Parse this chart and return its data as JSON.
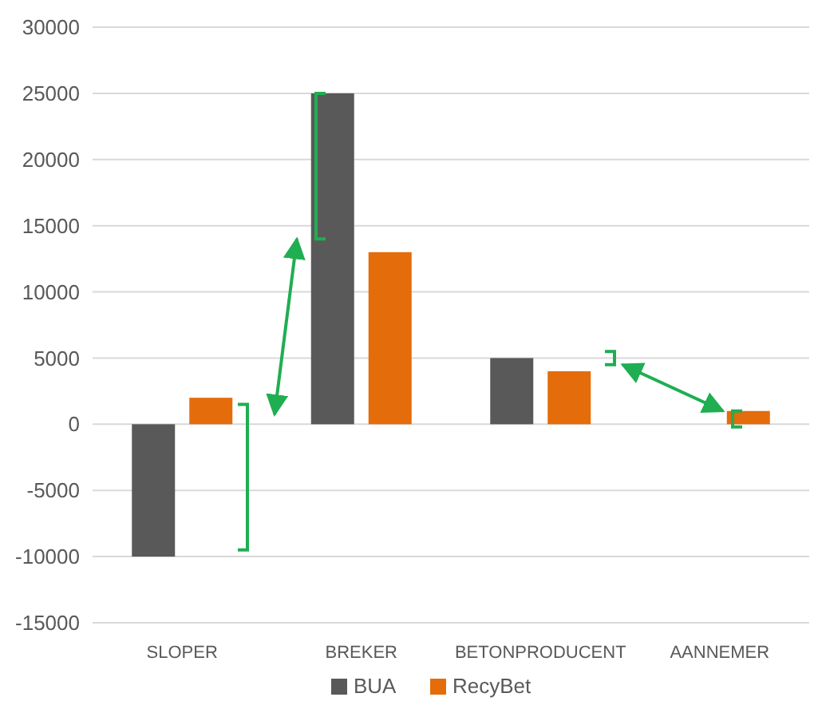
{
  "chart_data": {
    "type": "bar",
    "categories": [
      "SLOPER",
      "BREKER",
      "BETONPRODUCENT",
      "AANNEMER"
    ],
    "series": [
      {
        "name": "BUA",
        "color": "#595959",
        "values": [
          -10000,
          25000,
          5000,
          null
        ]
      },
      {
        "name": "RecyBet",
        "color": "#e46c0a",
        "values": [
          2000,
          13000,
          4000,
          1000
        ]
      }
    ],
    "ylim": [
      -15000,
      30000
    ],
    "yticks": [
      -15000,
      -10000,
      -5000,
      0,
      5000,
      10000,
      15000,
      20000,
      25000,
      30000
    ],
    "grid": "y",
    "legend": "bottom"
  }
}
